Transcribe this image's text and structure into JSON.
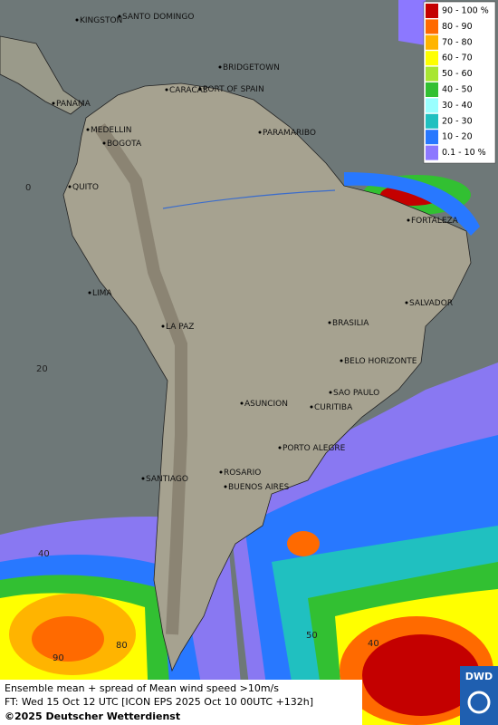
{
  "legend": [
    {
      "label": "90 - 100 %",
      "color": "#c40000"
    },
    {
      "label": "80 - 90",
      "color": "#ff6a00"
    },
    {
      "label": "70 - 80",
      "color": "#ffb400"
    },
    {
      "label": "60 - 70",
      "color": "#ffff00"
    },
    {
      "label": "50 - 60",
      "color": "#a8e632"
    },
    {
      "label": "40 - 50",
      "color": "#32c032"
    },
    {
      "label": "30 - 40",
      "color": "#9affff"
    },
    {
      "label": "20 - 30",
      "color": "#20c0c0"
    },
    {
      "label": "10 - 20",
      "color": "#2878ff"
    },
    {
      "label": "0.1 - 10 %",
      "color": "#8c78ff"
    }
  ],
  "cities": [
    "KINGSTON",
    "SANTO DOMINGO",
    "BRIDGETOWN",
    "CARACAS",
    "PORT OF SPAIN",
    "PANAMA",
    "MEDELLIN",
    "BOGOTA",
    "PARAMARIBO",
    "QUITO",
    "FORTALEZA",
    "LIMA",
    "SALVADOR",
    "LA PAZ",
    "BRASILIA",
    "BELO HORIZONTE",
    "ASUNCION",
    "SAO PAULO",
    "CURITIBA",
    "PORTO ALEGRE",
    "ROSARIO",
    "SANTIAGO",
    "BUENOS AIRES"
  ],
  "grid_labels": [
    "0",
    "20",
    "40"
  ],
  "contour_labels": [
    "80",
    "90",
    "50",
    "40"
  ],
  "footer": {
    "line1": "Ensemble mean + spread of Mean wind speed >10m/s",
    "line2": "FT: Wed 15 Oct 12 UTC [ICON EPS 2025 Oct 10 00UTC +132h]",
    "copyright": "©2025 Deutscher Wetterdienst"
  },
  "logo": "DWD"
}
